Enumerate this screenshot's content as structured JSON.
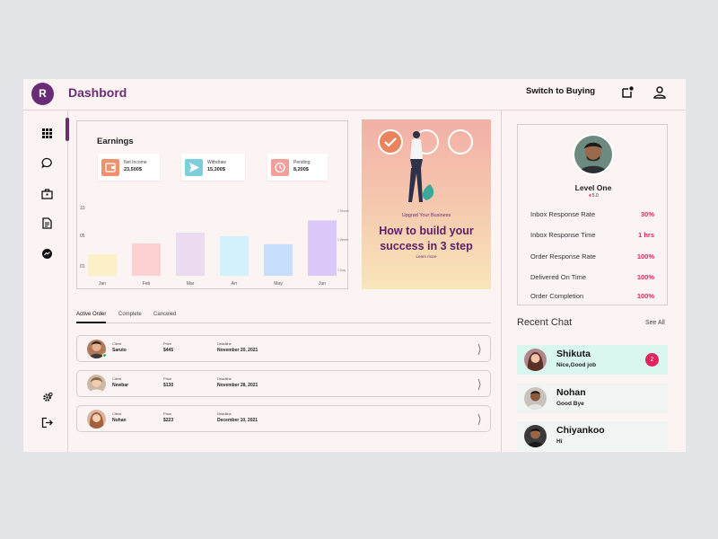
{
  "header": {
    "avatar_letter": "R",
    "title": "Dashbord",
    "switch_label": "Switch to Buying",
    "icons": [
      "notification-icon",
      "user-icon"
    ]
  },
  "sidebar": {
    "items": [
      {
        "icon": "grid-icon"
      },
      {
        "icon": "chat-bubble-icon"
      },
      {
        "icon": "briefcase-icon"
      },
      {
        "icon": "document-icon"
      },
      {
        "icon": "messenger-icon"
      },
      {
        "icon": "settings-icon"
      },
      {
        "icon": "logout-icon"
      }
    ]
  },
  "earnings": {
    "title": "Earnings",
    "stats": [
      {
        "label": "Net Income",
        "value": "23,500$",
        "icon": "wallet-icon",
        "color": "#f0906d"
      },
      {
        "label": "Withdraw",
        "value": "15,300$",
        "icon": "send-icon",
        "color": "#7ecfdc"
      },
      {
        "label": "Pending",
        "value": "8,200$",
        "icon": "clock-icon",
        "color": "#f09f9a"
      }
    ]
  },
  "chart_data": {
    "type": "bar",
    "categories": [
      "Jan",
      "Feb",
      "Mar",
      "Arr",
      "May",
      "Jun"
    ],
    "values": [
      0.3,
      0.45,
      0.6,
      0.55,
      0.44,
      0.77
    ],
    "colors": [
      "#fdf0c8",
      "#fdd0d2",
      "#ecdaf0",
      "#d3f1fc",
      "#c7dffc",
      "#dac9f8"
    ],
    "y_ticks": [
      "10",
      "05",
      "01"
    ],
    "right_ticks": [
      "1 Month",
      "1 Week",
      "1 Day"
    ],
    "ylim": [
      0,
      1
    ]
  },
  "promo": {
    "subtitle": "Upgrad Your Business",
    "title": "How to build your success in 3 step",
    "link": "Learn more"
  },
  "tabs": [
    "Active Order",
    "Complete",
    "Canceled"
  ],
  "orders": {
    "client_label": "Client",
    "price_label": "Price",
    "deadline_label": "Deadline",
    "rows": [
      {
        "client": "Saruto",
        "price": "$445",
        "deadline": "November 20, 2021",
        "online": true
      },
      {
        "client": "Newbar",
        "price": "$130",
        "deadline": "November 28, 2021",
        "online": false
      },
      {
        "client": "Nohan",
        "price": "$223",
        "deadline": "December 10, 2021",
        "online": false
      }
    ]
  },
  "profile": {
    "level": "Level One",
    "rating": "5.0",
    "star": "★",
    "metrics": [
      {
        "label": "Inbox Response Rate",
        "value": "30%"
      },
      {
        "label": "Inbox Response Time",
        "value": "1 hrs"
      },
      {
        "label": "Order Response Rate",
        "value": "100%"
      },
      {
        "label": "Delivered On Time",
        "value": "100%"
      },
      {
        "label": "Order  Completion",
        "value": "100%"
      }
    ]
  },
  "recent_chat": {
    "title": "Recent Chat",
    "see_all": "See All",
    "items": [
      {
        "name": "Shikuta",
        "message": "Nice,Good job",
        "unread": "2"
      },
      {
        "name": "Nohan",
        "message": "Good Bye",
        "unread": ""
      },
      {
        "name": "Chiyankoo",
        "message": "Hi",
        "unread": ""
      }
    ]
  }
}
